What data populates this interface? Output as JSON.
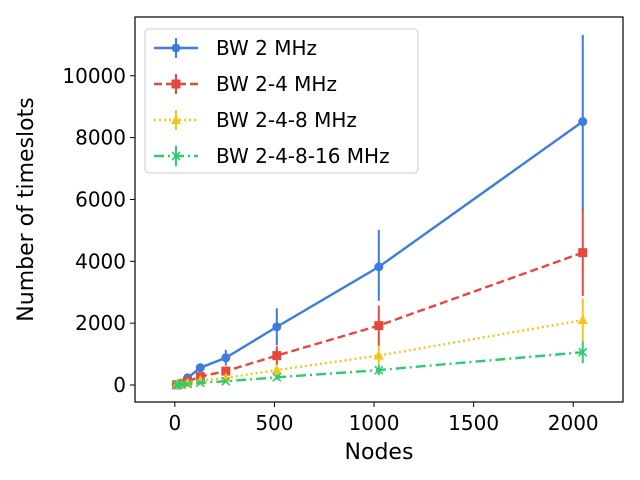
{
  "chart_data": {
    "type": "line",
    "xlabel": "Nodes",
    "ylabel": "Number of timeslots",
    "xlim": [
      -200,
      2250
    ],
    "ylim": [
      -550,
      11900
    ],
    "xticks": [
      0,
      500,
      1000,
      1500,
      2000
    ],
    "yticks": [
      0,
      2000,
      4000,
      6000,
      8000,
      10000
    ],
    "grid": false,
    "legend_position": "top-left",
    "x": [
      8,
      16,
      32,
      64,
      128,
      256,
      512,
      1024,
      2048
    ],
    "series": [
      {
        "name": "BW 2 MHz",
        "color": "#3b7ddd",
        "marker": "circle",
        "linestyle": "solid",
        "values": [
          10,
          25,
          60,
          230,
          560,
          880,
          1880,
          3820,
          8520
        ],
        "err_low": [
          5,
          10,
          25,
          70,
          130,
          250,
          600,
          1100,
          2900
        ],
        "err_high": [
          5,
          10,
          25,
          70,
          130,
          250,
          600,
          1200,
          2800
        ]
      },
      {
        "name": "BW 2-4 MHz",
        "color": "#e8473e",
        "marker": "square",
        "linestyle": "dashed",
        "values": [
          5,
          15,
          35,
          120,
          270,
          450,
          950,
          1920,
          4280
        ],
        "err_low": [
          3,
          8,
          15,
          40,
          70,
          130,
          300,
          650,
          1400
        ],
        "err_high": [
          3,
          8,
          15,
          40,
          70,
          130,
          300,
          650,
          1400
        ]
      },
      {
        "name": "BW 2-4-8 MHz",
        "color": "#f5c518",
        "marker": "triangle",
        "linestyle": "dotted",
        "values": [
          3,
          8,
          20,
          60,
          140,
          230,
          480,
          950,
          2100
        ],
        "err_low": [
          2,
          4,
          8,
          20,
          35,
          65,
          150,
          320,
          700
        ],
        "err_high": [
          2,
          4,
          8,
          20,
          35,
          65,
          150,
          320,
          700
        ]
      },
      {
        "name": "BW 2-4-8-16 MHz",
        "color": "#2ecc71",
        "marker": "x",
        "linestyle": "dashdot",
        "values": [
          2,
          5,
          12,
          30,
          70,
          120,
          250,
          480,
          1060
        ],
        "err_low": [
          1,
          2,
          5,
          10,
          20,
          35,
          80,
          160,
          350
        ],
        "err_high": [
          1,
          2,
          5,
          10,
          20,
          35,
          80,
          160,
          350
        ]
      }
    ]
  }
}
